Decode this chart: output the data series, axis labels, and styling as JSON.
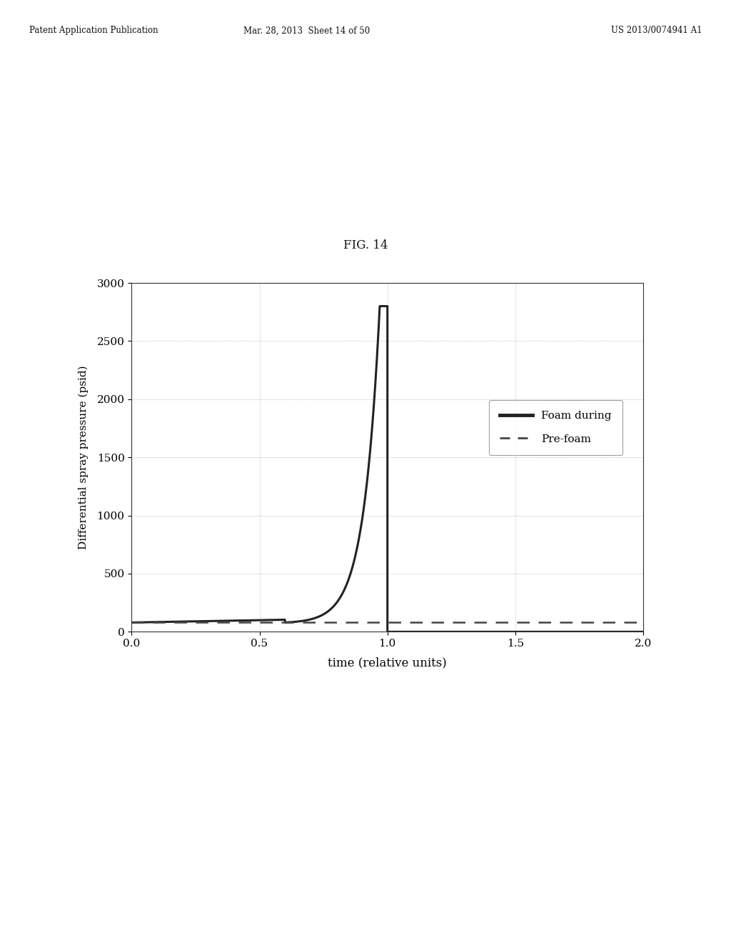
{
  "title": "FIG. 14",
  "xlabel": "time (relative units)",
  "ylabel": "Differential spray pressure (psid)",
  "header_left": "Patent Application Publication",
  "header_center": "Mar. 28, 2013  Sheet 14 of 50",
  "header_right": "US 2013/0074941 A1",
  "xlim": [
    0.0,
    2.0
  ],
  "ylim": [
    0,
    3000
  ],
  "xticks": [
    0.0,
    0.5,
    1.0,
    1.5,
    2.0
  ],
  "yticks": [
    0,
    500,
    1000,
    1500,
    2000,
    2500,
    3000
  ],
  "foam_peak": 2800,
  "foam_peak_x": 0.97,
  "foam_rise_start": 0.6,
  "foam_drop_x": 1.0,
  "prefoam_level": 80,
  "background_color": "#ffffff",
  "line_color": "#222222",
  "legend_foam_label": "Foam during",
  "legend_prefoam_label": "Pre-foam",
  "grid_color": "#999999",
  "fig_width": 10.24,
  "fig_height": 13.2
}
